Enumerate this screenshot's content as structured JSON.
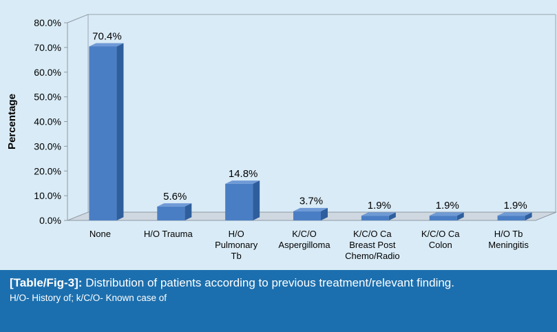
{
  "chart_data": {
    "type": "bar",
    "style": "3d",
    "categories": [
      [
        "None"
      ],
      [
        "H/O Trauma"
      ],
      [
        "H/O",
        "Pulmonary",
        "Tb"
      ],
      [
        "K/C/O",
        "Aspergilloma"
      ],
      [
        "K/C/O Ca",
        "Breast Post",
        "Chemo/Radio"
      ],
      [
        "K/C/O Ca",
        "Colon"
      ],
      [
        "H/O  Tb",
        "Meningitis"
      ]
    ],
    "values": [
      70.4,
      5.6,
      14.8,
      3.7,
      1.9,
      1.9,
      1.9
    ],
    "data_labels": [
      "70.4%",
      "5.6%",
      "14.8%",
      "3.7%",
      "1.9%",
      "1.9%",
      "1.9%"
    ],
    "ylabel": "Percentage",
    "ylim": [
      0,
      80
    ],
    "yticks": [
      "0.0%",
      "10.0%",
      "20.0%",
      "30.0%",
      "40.0%",
      "50.0%",
      "60.0%",
      "70.0%",
      "80.0%"
    ],
    "grid": false,
    "legend": "none",
    "colors": {
      "bar_front": "#4a7ec4",
      "bar_top": "#6f9ad6",
      "bar_side": "#2f5e9c",
      "background": "#d9ebf6"
    }
  },
  "caption": {
    "tag": "[Table/Fig-3]:",
    "text": "Distribution of patients according to previous treatment/relevant finding.",
    "note": "H/O- History of; k/C/O- Known case of",
    "background": "#1c6fae"
  }
}
